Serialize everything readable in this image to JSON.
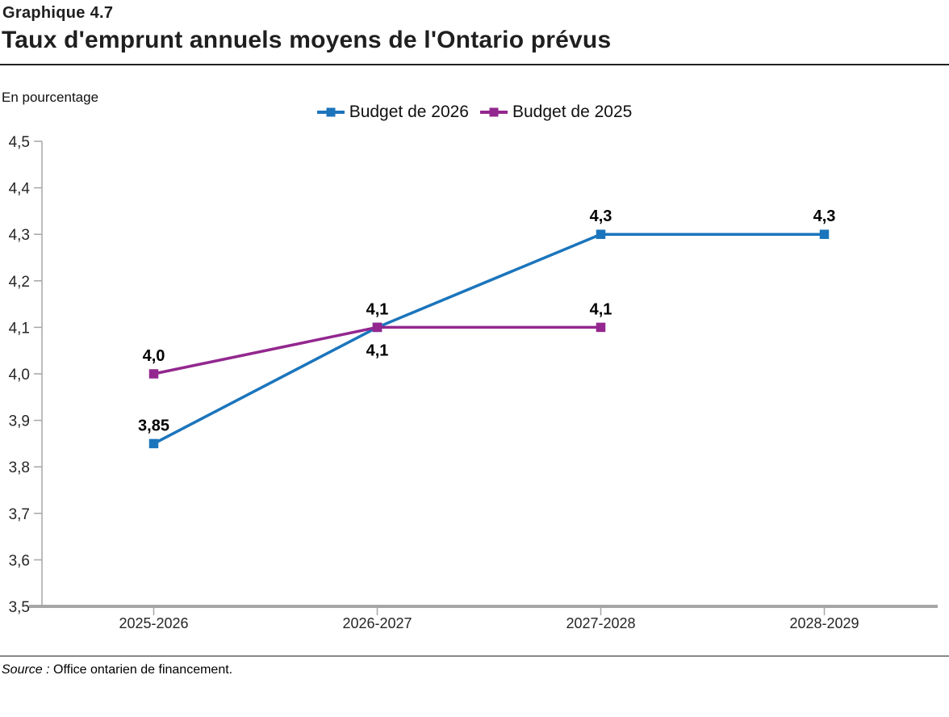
{
  "chart_data": {
    "type": "line",
    "kicker": "Graphique 4.7",
    "title": "Taux d'emprunt annuels moyens de l'Ontario prévus",
    "unit_note": "En pourcentage",
    "categories": [
      "2025-2026",
      "2026-2027",
      "2027-2028",
      "2028-2029"
    ],
    "series": [
      {
        "name": "Budget de 2026",
        "color": "#1B75BC",
        "values": [
          3.85,
          4.1,
          4.3,
          4.3
        ],
        "point_labels": [
          "3,85",
          "4,1",
          "4,3",
          "4,3"
        ],
        "label_positions": [
          "above",
          "below",
          "above",
          "above"
        ]
      },
      {
        "name": "Budget de 2025",
        "color": "#93278F",
        "values": [
          4.0,
          4.1,
          4.1,
          null
        ],
        "point_labels": [
          "4,0",
          "4,1",
          "4,1",
          null
        ],
        "label_positions": [
          "above",
          "above",
          "above",
          null
        ]
      }
    ],
    "ylim": [
      3.5,
      4.5
    ],
    "ytick_step": 0.1,
    "ytick_labels": [
      "4,5",
      "4,4",
      "4,3",
      "4,2",
      "4,1",
      "4,0",
      "3,9",
      "3,8",
      "3,7",
      "3,6",
      "3,5"
    ],
    "legend_position": "top",
    "grid": false,
    "axis_color": "#A6A6A6"
  },
  "footer": {
    "source_label": "Source :",
    "source_text": " Office ontarien de financement."
  }
}
